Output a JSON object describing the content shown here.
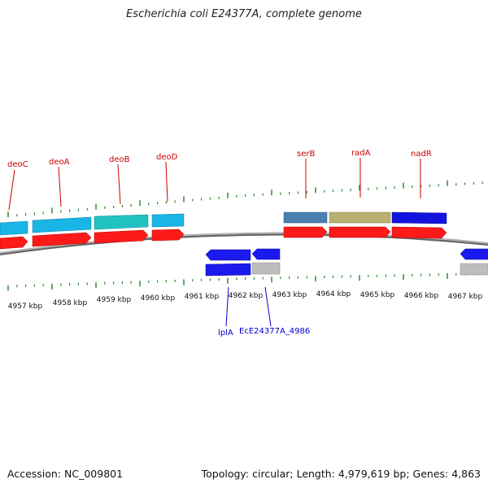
{
  "title": "Escherichia coli E24377A, complete genome",
  "footer": {
    "accession": "Accession: NC_009801",
    "summary": "Topology: circular; Length: 4,979,619 bp; Genes: 4,863"
  },
  "colors": {
    "backbone": "#8a8a8a",
    "tick": "#2e8b2e",
    "label_red": "#cc0000",
    "label_blue": "#0000cc"
  },
  "axis": {
    "unit": "kbp",
    "ticks": [
      {
        "label": "4957 kbp"
      },
      {
        "label": "4958 kbp"
      },
      {
        "label": "4959 kbp"
      },
      {
        "label": "4960 kbp"
      },
      {
        "label": "4961 kbp"
      },
      {
        "label": "4962 kbp"
      },
      {
        "label": "4963 kbp"
      },
      {
        "label": "4964 kbp"
      },
      {
        "label": "4965 kbp"
      },
      {
        "label": "4966 kbp"
      },
      {
        "label": "4967 kbp"
      }
    ]
  },
  "gene_labels": {
    "top": [
      "deoC",
      "deoA",
      "deoB",
      "deoD",
      "serB",
      "radA",
      "nadR"
    ],
    "bottom": [
      "lplA",
      "EcE24377A_4986"
    ]
  }
}
